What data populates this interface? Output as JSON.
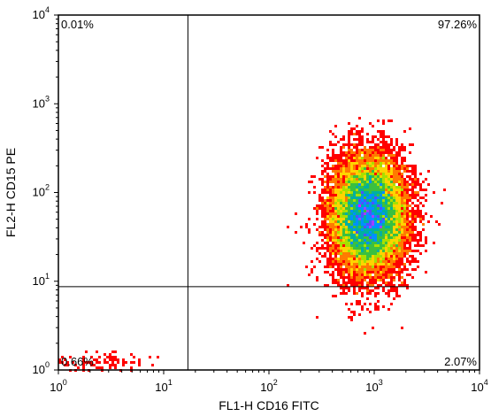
{
  "chart_data": {
    "type": "scatter",
    "subtype": "flow-cytometry-density-dot-plot",
    "xlabel": "FL1-H CD16 FITC",
    "ylabel": "FL2-H CD15 PE",
    "x_scale": "log",
    "y_scale": "log",
    "xlim": [
      1,
      10000
    ],
    "ylim": [
      1,
      10000
    ],
    "x_ticks": [
      {
        "base": "10",
        "exp": "0"
      },
      {
        "base": "10",
        "exp": "1"
      },
      {
        "base": "10",
        "exp": "2"
      },
      {
        "base": "10",
        "exp": "3"
      },
      {
        "base": "10",
        "exp": "4"
      }
    ],
    "y_ticks": [
      {
        "base": "10",
        "exp": "0"
      },
      {
        "base": "10",
        "exp": "1"
      },
      {
        "base": "10",
        "exp": "2"
      },
      {
        "base": "10",
        "exp": "3"
      },
      {
        "base": "10",
        "exp": "4"
      }
    ],
    "quadrant_gates": {
      "x": 17,
      "y": 8.7
    },
    "quadrants": [
      {
        "position": "upper-left",
        "label": "0.01%"
      },
      {
        "position": "upper-right",
        "label": "97.26%"
      },
      {
        "position": "lower-left",
        "label": "0.66%"
      },
      {
        "position": "lower-right",
        "label": "2.07%"
      }
    ],
    "grid": false,
    "populations": [
      {
        "center_x": 880,
        "center_y": 55,
        "spread_x_decades": 0.18,
        "spread_y_decades": 0.33,
        "share": 0.97
      },
      {
        "center_x": 2.5,
        "center_y": 1.2,
        "spread_x_decades": 0.2,
        "spread_y_decades": 0.05,
        "share": 0.007
      }
    ],
    "density_colors": [
      "#ff0000",
      "#ff7a00",
      "#ffd400",
      "#a8e000",
      "#3ac040",
      "#00b0a0",
      "#0090ff",
      "#5050ff",
      "#a040ff",
      "#ff00ff"
    ]
  }
}
